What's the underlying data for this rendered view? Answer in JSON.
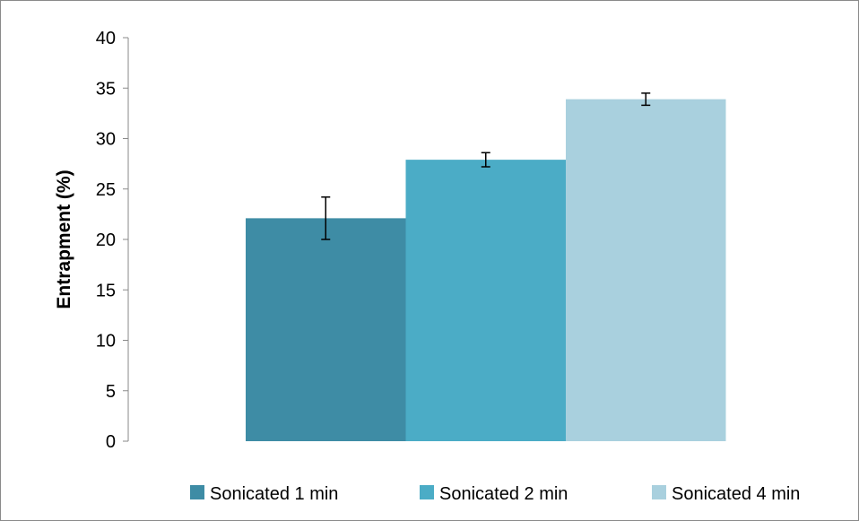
{
  "chart_data": {
    "type": "bar",
    "title": "",
    "xlabel": "",
    "ylabel": "Entrapment (%)",
    "ylim": [
      0,
      40
    ],
    "yticks": [
      0,
      5,
      10,
      15,
      20,
      25,
      30,
      35,
      40
    ],
    "grid": false,
    "legend_position": "bottom",
    "series": [
      {
        "name": "Sonicated 1 min",
        "value": 22.1,
        "error": 2.1,
        "color": "#3e8ca5"
      },
      {
        "name": "Sonicated 2 min",
        "value": 27.9,
        "error": 0.7,
        "color": "#4bacc6"
      },
      {
        "name": "Sonicated 4 min",
        "value": 33.9,
        "error": 0.6,
        "color": "#a9d0de"
      }
    ]
  }
}
